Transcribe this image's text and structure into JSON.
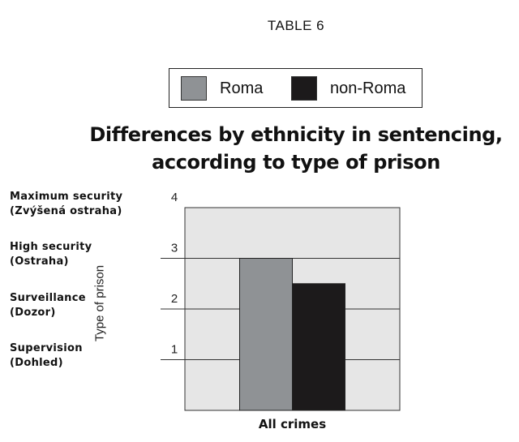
{
  "header": {
    "table_label": "TABLE 6"
  },
  "legend": {
    "items": [
      {
        "label": "Roma",
        "color": "#8f9295"
      },
      {
        "label": "non-Roma",
        "color": "#1c1a1b"
      }
    ]
  },
  "chart_data": {
    "type": "bar",
    "title_line1": "Differences by ethnicity in sentencing,",
    "title_line2": "according to type of prison",
    "categories": [
      "All crimes"
    ],
    "series": [
      {
        "name": "Roma",
        "values": [
          3.0
        ],
        "color": "#8f9295"
      },
      {
        "name": "non-Roma",
        "values": [
          2.5
        ],
        "color": "#1c1a1b"
      }
    ],
    "xlabel": "All crimes",
    "ylabel": "Type of prison",
    "ylim": [
      0,
      4
    ],
    "y_ticks": [
      "1",
      "2",
      "3",
      "4"
    ],
    "plot_background": "#e6e6e6",
    "grid": true,
    "category_labels": [
      {
        "line1": "Maximum security",
        "line2": "(Zvýšená ostraha)"
      },
      {
        "line1": "High security",
        "line2": "(Ostraha)"
      },
      {
        "line1": "Surveillance",
        "line2": "(Dozor)"
      },
      {
        "line1": "Supervision",
        "line2": "(Dohled)"
      }
    ]
  }
}
